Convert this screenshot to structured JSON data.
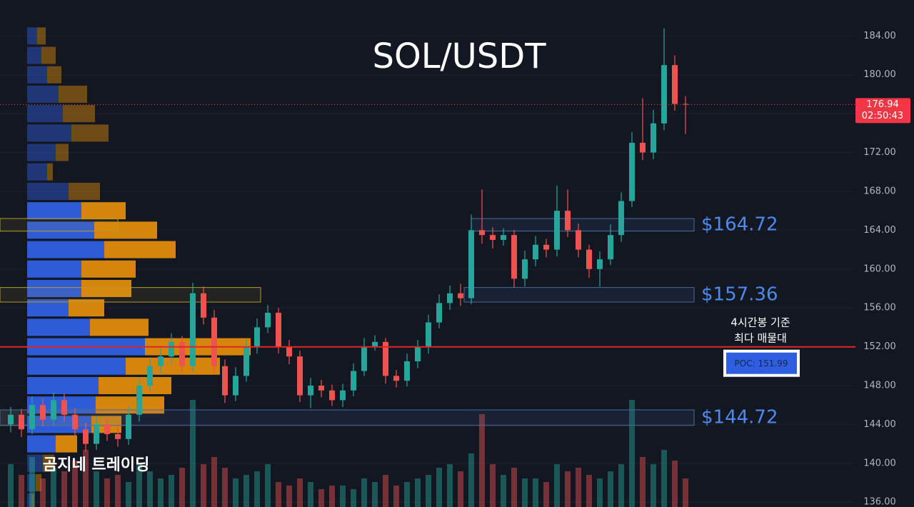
{
  "chart_data": {
    "type": "candlestick",
    "title": "SOL/USDT",
    "watermark": "곰지네 트레이딩",
    "ylim": [
      135.5,
      187.7
    ],
    "yticks": [
      {
        "value": 136,
        "label": "136.00"
      },
      {
        "value": 140,
        "label": "140.00"
      },
      {
        "value": 144,
        "label": "144.00"
      },
      {
        "value": 148,
        "label": "148.00"
      },
      {
        "value": 152,
        "label": "152.00"
      },
      {
        "value": 156,
        "label": "156.00"
      },
      {
        "value": 160,
        "label": "160.00"
      },
      {
        "value": 164,
        "label": "164.00"
      },
      {
        "value": 168,
        "label": "168.00"
      },
      {
        "value": 172,
        "label": "172.00"
      },
      {
        "value": 176,
        "label": "176.00"
      },
      {
        "value": 180,
        "label": "180.00"
      },
      {
        "value": 184,
        "label": "184.00"
      }
    ],
    "grid": true,
    "up_color": "#26a69a",
    "down_color": "#ef5350",
    "open": [
      144,
      145,
      143.5,
      146,
      144.5,
      146.5,
      145,
      143.5,
      142,
      144,
      143,
      142.5,
      145,
      148,
      150,
      151,
      152.5,
      150,
      157.5,
      155,
      150,
      147,
      149,
      152,
      154,
      155.5,
      152,
      151,
      147,
      148,
      147.5,
      146.5,
      147.5,
      149.5,
      152,
      152.5,
      149,
      148.5,
      150.5,
      152,
      154.5,
      156.5,
      157.5,
      157,
      164,
      163.5,
      163,
      163.5,
      159,
      161,
      162.5,
      162,
      166,
      164,
      162,
      160,
      161,
      163.5,
      167,
      173,
      172,
      175,
      181,
      177
    ],
    "high": [
      145.8,
      145.6,
      146.9,
      146.7,
      147.3,
      147.2,
      145.7,
      144.2,
      144.9,
      144.6,
      143.8,
      145.9,
      148.7,
      150.9,
      151.8,
      153.4,
      153.1,
      158.6,
      158.2,
      155.8,
      150.7,
      149.9,
      152.8,
      154.9,
      156.3,
      156,
      152.7,
      151.6,
      148.8,
      148.6,
      148.1,
      148.2,
      150.3,
      152.9,
      153.2,
      152.9,
      149.6,
      151.3,
      152.7,
      155.3,
      157.4,
      158.3,
      158.5,
      165.6,
      168.2,
      164.3,
      164.2,
      164,
      161.9,
      163.4,
      163.1,
      168.6,
      168.2,
      164.7,
      162.5,
      161.8,
      164.6,
      167.9,
      174.1,
      177.6,
      176.4,
      184.8,
      182,
      177.8
    ],
    "low": [
      143.2,
      142.7,
      143,
      143.8,
      143.9,
      144.3,
      142.7,
      141.2,
      141.4,
      142.3,
      141.7,
      141.9,
      144.3,
      147.4,
      149.3,
      150.2,
      149.2,
      149.4,
      154.3,
      149.3,
      146.2,
      146.4,
      148.4,
      151.3,
      153.4,
      151.3,
      150.2,
      146.3,
      145.7,
      146.8,
      145.9,
      145.8,
      146.9,
      149,
      151.6,
      148.2,
      147.8,
      147.9,
      149.8,
      151.3,
      153.9,
      155.8,
      156.2,
      156.4,
      162.6,
      162.1,
      162.4,
      158.1,
      158.2,
      160.3,
      161.2,
      161.3,
      163.3,
      161.2,
      159.1,
      158.2,
      160.4,
      162.8,
      166.4,
      171.2,
      171.3,
      174.3,
      176.3,
      173.9
    ],
    "close": [
      145,
      143.5,
      146,
      144.5,
      146.5,
      145,
      143.5,
      142,
      144,
      143,
      142.5,
      145,
      148,
      150,
      151,
      152.5,
      150,
      157.5,
      155,
      150,
      147,
      149,
      152,
      154,
      155.5,
      152,
      151,
      147,
      148,
      147.5,
      146.5,
      147.5,
      149.5,
      152,
      152.5,
      149,
      148.5,
      150.5,
      152,
      154.5,
      156.5,
      157.5,
      157,
      164,
      163.5,
      163,
      163.5,
      159,
      161,
      162.5,
      162,
      166,
      164,
      162,
      160,
      161,
      163.5,
      167,
      173,
      172,
      175,
      181,
      177,
      176.94
    ],
    "volume": [
      60,
      45,
      70,
      40,
      55,
      50,
      65,
      80,
      50,
      40,
      45,
      35,
      60,
      50,
      40,
      45,
      55,
      150,
      60,
      70,
      55,
      40,
      45,
      50,
      60,
      35,
      30,
      40,
      35,
      25,
      30,
      30,
      25,
      40,
      35,
      45,
      30,
      35,
      40,
      45,
      55,
      60,
      50,
      75,
      130,
      60,
      45,
      55,
      40,
      40,
      35,
      60,
      50,
      55,
      45,
      40,
      50,
      60,
      150,
      70,
      60,
      80,
      65,
      40
    ],
    "volume_profile": {
      "levels": [
        184,
        182,
        180,
        178,
        176,
        174,
        172,
        170,
        168,
        166,
        164,
        162,
        160,
        158,
        156,
        154,
        152,
        150,
        148,
        146,
        144,
        142,
        140,
        138,
        136
      ],
      "buy": [
        14,
        20,
        28,
        44,
        50,
        62,
        40,
        28,
        58,
        76,
        94,
        108,
        76,
        76,
        58,
        88,
        165,
        138,
        100,
        96,
        90,
        40,
        22,
        12,
        6
      ],
      "sell": [
        12,
        20,
        20,
        40,
        45,
        52,
        18,
        8,
        44,
        62,
        88,
        100,
        76,
        70,
        50,
        82,
        148,
        132,
        102,
        96,
        42,
        30,
        16,
        8,
        4
      ],
      "buy_color": "#2f5fe0",
      "sell_color": "#e08b0c"
    },
    "zones": [
      {
        "label": "$164.72",
        "top": 165.2,
        "bottom": 163.9
      },
      {
        "label": "$157.36",
        "top": 158.1,
        "bottom": 156.6
      },
      {
        "label": "$144.72",
        "top": 145.5,
        "bottom": 143.9
      }
    ],
    "poc": 151.99,
    "poc_label": "POC: 151.99",
    "annotation": [
      "4시간봉 기준",
      "최다 매물대"
    ],
    "last_price": 176.94,
    "countdown": "02:50:43"
  }
}
